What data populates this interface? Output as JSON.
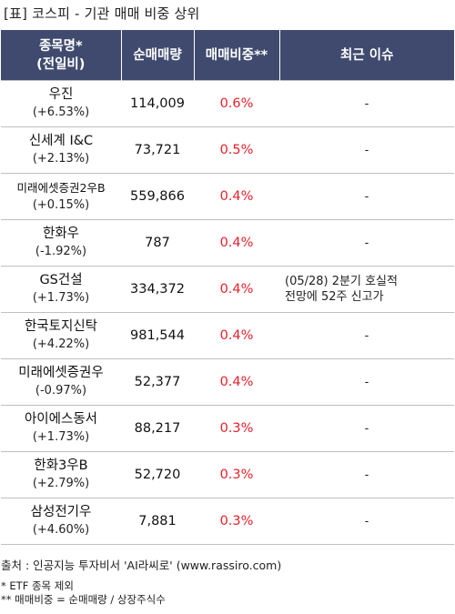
{
  "title": "[표] 코스피 - 기관 매매 비중 상위",
  "header": {
    "name_line1": "종목명*",
    "name_line2": "(전일비)",
    "amount": "순매매량",
    "ratio": "매매비중**",
    "issue": "최근 이슈"
  },
  "rows": [
    {
      "name": "우진",
      "change": "(+6.53%)",
      "amount": "114,009",
      "ratio": "0.6%",
      "issue_line1": "-",
      "issue_line2": ""
    },
    {
      "name": "신세계 I&C",
      "change": "(+2.13%)",
      "amount": "73,721",
      "ratio": "0.5%",
      "issue_line1": "-",
      "issue_line2": ""
    },
    {
      "name": "미래에셋증권2우B",
      "change": "(+0.15%)",
      "amount": "559,866",
      "ratio": "0.4%",
      "issue_line1": "-",
      "issue_line2": ""
    },
    {
      "name": "한화우",
      "change": "(-1.92%)",
      "amount": "787",
      "ratio": "0.4%",
      "issue_line1": "-",
      "issue_line2": ""
    },
    {
      "name": "GS건설",
      "change": "(+1.73%)",
      "amount": "334,372",
      "ratio": "0.4%",
      "issue_line1": "(05/28) 2분기 호실적",
      "issue_line2": "전망에 52주 신고가"
    },
    {
      "name": "한국토지신탁",
      "change": "(+4.22%)",
      "amount": "981,544",
      "ratio": "0.4%",
      "issue_line1": "-",
      "issue_line2": ""
    },
    {
      "name": "미래에셋증권우",
      "change": "(-0.97%)",
      "amount": "52,377",
      "ratio": "0.4%",
      "issue_line1": "-",
      "issue_line2": ""
    },
    {
      "name": "아이에스동서",
      "change": "(+1.73%)",
      "amount": "88,217",
      "ratio": "0.3%",
      "issue_line1": "-",
      "issue_line2": ""
    },
    {
      "name": "한화3우B",
      "change": "(+2.79%)",
      "amount": "52,720",
      "ratio": "0.3%",
      "issue_line1": "-",
      "issue_line2": ""
    },
    {
      "name": "삼성전기우",
      "change": "(+4.60%)",
      "amount": "7,881",
      "ratio": "0.3%",
      "issue_line1": "-",
      "issue_line2": ""
    }
  ],
  "footer": {
    "source": "출처 : 인공지능 투자비서 'AI라씨로' (www.rassiro.com)",
    "note1": "* ETF 종목 제외",
    "note2": "** 매매비중 = 순매매량 / 상장주식수"
  },
  "colors": {
    "header_bg": "#3f4a6e",
    "ratio_text": "#e8202a"
  }
}
